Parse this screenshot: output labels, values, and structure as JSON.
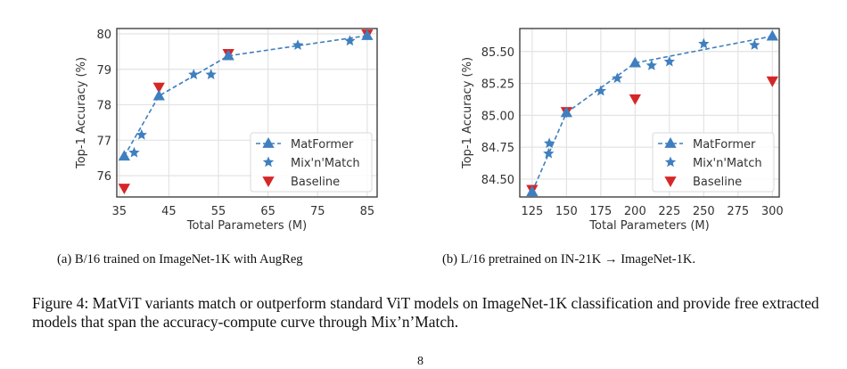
{
  "chart_data": [
    {
      "type": "line",
      "id": "a",
      "title": "",
      "xlabel": "Total Parameters (M)",
      "ylabel": "Top-1 Accuracy (%)",
      "xlim": [
        34.5,
        87
      ],
      "ylim": [
        75.4,
        80.15
      ],
      "xticks": [
        35,
        45,
        55,
        65,
        75,
        85
      ],
      "xtick_labels": [
        "35",
        "45",
        "55",
        "65",
        "75",
        "85"
      ],
      "yticks": [
        76,
        77,
        78,
        79,
        80
      ],
      "ytick_labels": [
        "76",
        "77",
        "78",
        "79",
        "80"
      ],
      "grid": true,
      "legend_position": "lower-right",
      "series": [
        {
          "name": "MatFormer",
          "marker": "triangle-up",
          "line": "dashed",
          "color": "#3f7fbf",
          "x": [
            36,
            43,
            57,
            85
          ],
          "y": [
            76.55,
            78.25,
            79.38,
            79.95
          ]
        },
        {
          "name": "Mix'n'Match",
          "marker": "star",
          "line": "none",
          "color": "#3f7fbf",
          "x": [
            38,
            39.5,
            50,
            53.5,
            71,
            81.5
          ],
          "y": [
            76.65,
            77.15,
            78.85,
            78.85,
            79.68,
            79.8
          ]
        },
        {
          "name": "Baseline",
          "marker": "triangle-down",
          "line": "none",
          "color": "#d62728",
          "x": [
            36,
            43,
            57,
            85
          ],
          "y": [
            75.65,
            78.5,
            79.45,
            80.0
          ]
        }
      ]
    },
    {
      "type": "line",
      "id": "b",
      "title": "",
      "xlabel": "Total Parameters (M)",
      "ylabel": "Top-1 Accuracy (%)",
      "xlim": [
        116,
        305
      ],
      "ylim": [
        84.36,
        85.68
      ],
      "xticks": [
        125,
        150,
        175,
        200,
        225,
        250,
        275,
        300
      ],
      "xtick_labels": [
        "125",
        "150",
        "175",
        "200",
        "225",
        "250",
        "275",
        "300"
      ],
      "yticks": [
        84.5,
        84.75,
        85.0,
        85.25,
        85.5
      ],
      "ytick_labels": [
        "84.50",
        "84.75",
        "85.00",
        "85.25",
        "85.50"
      ],
      "grid": true,
      "legend_position": "lower-right",
      "series": [
        {
          "name": "MatFormer",
          "marker": "triangle-up",
          "line": "dashed",
          "color": "#3f7fbf",
          "x": [
            125,
            150,
            200,
            300
          ],
          "y": [
            84.4,
            85.02,
            85.41,
            85.62
          ]
        },
        {
          "name": "Mix'n'Match",
          "marker": "star",
          "line": "none",
          "color": "#3f7fbf",
          "x": [
            137,
            137.5,
            175,
            187,
            212,
            225,
            250,
            287
          ],
          "y": [
            84.7,
            84.78,
            85.19,
            85.29,
            85.39,
            85.42,
            85.56,
            85.55
          ]
        },
        {
          "name": "Baseline",
          "marker": "triangle-down",
          "line": "none",
          "color": "#d62728",
          "x": [
            125,
            150,
            200,
            300
          ],
          "y": [
            84.42,
            85.03,
            85.13,
            85.27
          ]
        }
      ]
    }
  ],
  "captions": {
    "sub_a": "(a) B/16 trained on ImageNet-1K with AugReg",
    "sub_b": "(b) L/16 pretrained on IN-21K → ImageNet-1K.",
    "figure": "Figure 4: MatViT variants match or outperform standard ViT models on ImageNet-1K classification and provide free extracted models that span the accuracy-compute curve through Mix’n’Match.",
    "page_number": "8"
  }
}
